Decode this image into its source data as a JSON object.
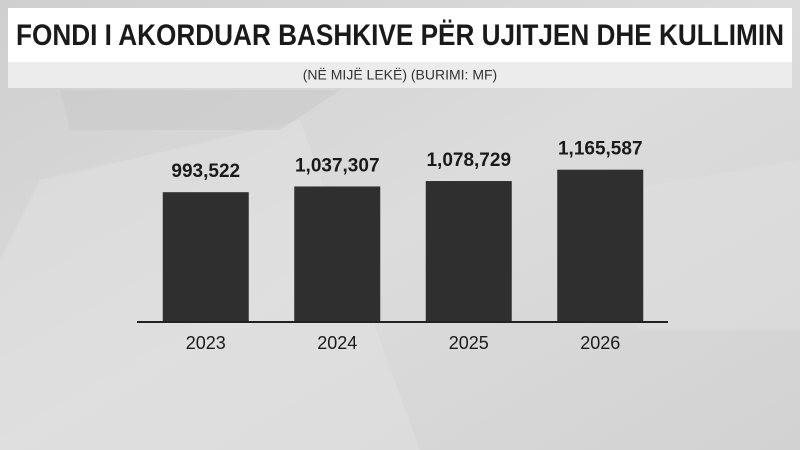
{
  "chart_data": {
    "type": "bar",
    "title": "FONDI I AKORDUAR BASHKIVE PËR UJITJEN DHE KULLIMIN",
    "subtitle": "(NË MIJË LEKË) (BURIMI: MF)",
    "categories": [
      "2023",
      "2024",
      "2025",
      "2026"
    ],
    "values": [
      993522,
      1037307,
      1078729,
      1165587
    ],
    "value_labels": [
      "993,522",
      "1,037,307",
      "1,078,729",
      "1,165,587"
    ],
    "color": "#2f2f2f",
    "ylim": [
      0,
      1500000
    ]
  }
}
